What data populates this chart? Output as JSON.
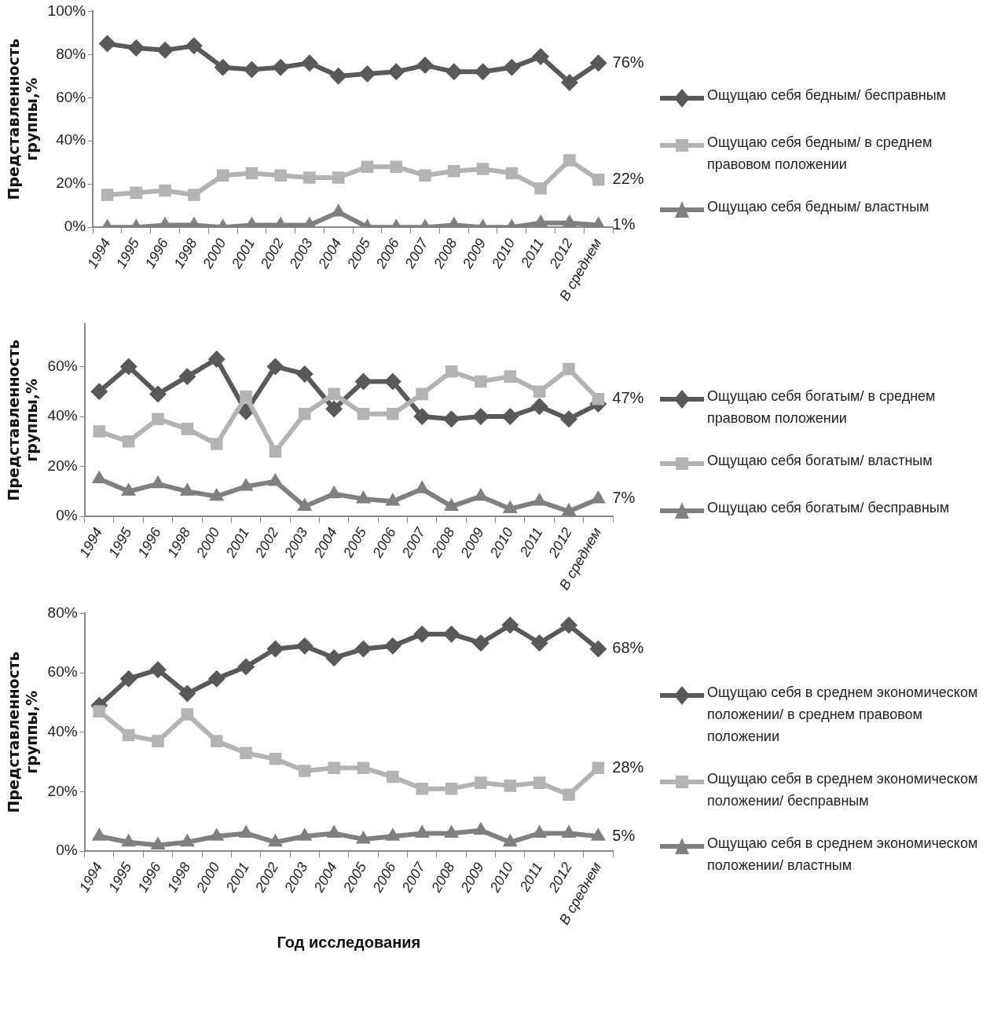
{
  "chart_data": [
    {
      "type": "line",
      "ylabel": "Представленность группы,%",
      "categories": [
        "1994",
        "1995",
        "1996",
        "1998",
        "2000",
        "2001",
        "2002",
        "2003",
        "2004",
        "2005",
        "2006",
        "2007",
        "2008",
        "2009",
        "2010",
        "2011",
        "2012",
        "В среднем"
      ],
      "ylim": [
        0,
        100
      ],
      "yticks": [
        {
          "value": 0,
          "label": "0%"
        },
        {
          "value": 20,
          "label": "20%"
        },
        {
          "value": 40,
          "label": "40%"
        },
        {
          "value": 60,
          "label": "60%"
        },
        {
          "value": 80,
          "label": "80%"
        },
        {
          "value": 100,
          "label": "100%"
        }
      ],
      "grid": false,
      "legend": "right",
      "line_style": "solid",
      "series": [
        {
          "name": "Ощущаю себя бедным/ бесправным",
          "color": "#595959",
          "marker": "diamond",
          "values": [
            85,
            83,
            82,
            84,
            74,
            73,
            74,
            76,
            70,
            71,
            72,
            75,
            72,
            72,
            74,
            79,
            67,
            76
          ],
          "value_labels": [
            null,
            null,
            null,
            null,
            null,
            null,
            null,
            null,
            null,
            null,
            null,
            null,
            null,
            null,
            null,
            null,
            null,
            "76%"
          ]
        },
        {
          "name": "Ощущаю себя бедным/  в среднем правовом положении",
          "color": "#b3b3b3",
          "marker": "square",
          "values": [
            15,
            16,
            17,
            15,
            24,
            25,
            24,
            23,
            23,
            28,
            28,
            24,
            26,
            27,
            25,
            18,
            31,
            22
          ],
          "value_labels": [
            null,
            null,
            null,
            null,
            null,
            null,
            null,
            null,
            null,
            null,
            null,
            null,
            null,
            null,
            null,
            null,
            null,
            "22%"
          ]
        },
        {
          "name": "Ощущаю себя бедным/ властным",
          "color": "#808080",
          "marker": "triangle",
          "values": [
            0,
            0,
            1,
            1,
            0,
            1,
            1,
            1,
            7,
            0,
            0,
            0,
            1,
            0,
            0,
            2,
            2,
            1
          ],
          "value_labels": [
            null,
            null,
            null,
            null,
            null,
            null,
            null,
            null,
            null,
            null,
            null,
            null,
            null,
            null,
            null,
            null,
            null,
            "1%"
          ]
        }
      ]
    },
    {
      "type": "line",
      "ylabel": "Представленность группы,%",
      "categories": [
        "1994",
        "1995",
        "1996",
        "1998",
        "2000",
        "2001",
        "2002",
        "2003",
        "2004",
        "2005",
        "2006",
        "2007",
        "2008",
        "2009",
        "2010",
        "2011",
        "2012",
        "В среднем"
      ],
      "ylim": [
        0,
        77
      ],
      "yticks": [
        {
          "value": 0,
          "label": "0%"
        },
        {
          "value": 20,
          "label": "20%"
        },
        {
          "value": 40,
          "label": "40%"
        },
        {
          "value": 60,
          "label": "60%"
        }
      ],
      "grid": false,
      "legend": "right",
      "line_style": "solid",
      "series": [
        {
          "name": "Ощущаю себя богатым/  в среднем правовом положении",
          "color": "#595959",
          "marker": "diamond",
          "values": [
            50,
            60,
            49,
            56,
            63,
            42,
            60,
            57,
            43,
            54,
            54,
            40,
            39,
            40,
            40,
            44,
            39,
            45
          ]
        },
        {
          "name": "Ощущаю себя богатым/ властным",
          "color": "#b3b3b3",
          "marker": "square",
          "values": [
            34,
            30,
            39,
            35,
            29,
            48,
            26,
            41,
            49,
            41,
            41,
            49,
            58,
            54,
            56,
            50,
            59,
            47
          ],
          "value_labels": [
            null,
            null,
            null,
            null,
            null,
            null,
            null,
            null,
            null,
            null,
            null,
            null,
            null,
            null,
            null,
            null,
            null,
            "47%"
          ]
        },
        {
          "name": "Ощущаю себя богатым/ бесправным",
          "color": "#808080",
          "marker": "triangle",
          "values": [
            15,
            10,
            13,
            10,
            8,
            12,
            14,
            4,
            9,
            7,
            6,
            11,
            4,
            8,
            3,
            6,
            2,
            7
          ],
          "value_labels": [
            null,
            null,
            null,
            null,
            null,
            null,
            null,
            null,
            null,
            null,
            null,
            null,
            null,
            null,
            null,
            null,
            null,
            "7%"
          ]
        }
      ]
    },
    {
      "type": "line",
      "ylabel": "Представленность группы,%",
      "xlabel": "Год исследования",
      "categories": [
        "1994",
        "1995",
        "1996",
        "1998",
        "2000",
        "2001",
        "2002",
        "2003",
        "2004",
        "2005",
        "2006",
        "2007",
        "2008",
        "2009",
        "2010",
        "2011",
        "2012",
        "В среднем"
      ],
      "ylim": [
        0,
        80
      ],
      "yticks": [
        {
          "value": 0,
          "label": "0%"
        },
        {
          "value": 20,
          "label": "20%"
        },
        {
          "value": 40,
          "label": "40%"
        },
        {
          "value": 60,
          "label": "60%"
        },
        {
          "value": 80,
          "label": "80%"
        }
      ],
      "grid": false,
      "legend": "right",
      "line_style": "solid",
      "series": [
        {
          "name": "Ощущаю себя в среднем экономическом положении/  в среднем правовом положении",
          "color": "#595959",
          "marker": "diamond",
          "values": [
            49,
            58,
            61,
            53,
            58,
            62,
            68,
            69,
            65,
            68,
            69,
            73,
            73,
            70,
            76,
            70,
            76,
            68
          ],
          "value_labels": [
            null,
            null,
            null,
            null,
            null,
            null,
            null,
            null,
            null,
            null,
            null,
            null,
            null,
            null,
            null,
            null,
            null,
            "68%"
          ]
        },
        {
          "name": "Ощущаю себя в среднем экономическом положении/ бесправным",
          "color": "#b3b3b3",
          "marker": "square",
          "values": [
            47,
            39,
            37,
            46,
            37,
            33,
            31,
            27,
            28,
            28,
            25,
            21,
            21,
            23,
            22,
            23,
            19,
            28
          ],
          "value_labels": [
            null,
            null,
            null,
            null,
            null,
            null,
            null,
            null,
            null,
            null,
            null,
            null,
            null,
            null,
            null,
            null,
            null,
            "28%"
          ]
        },
        {
          "name": "Ощущаю себя в среднем экономическом положении/ властным",
          "color": "#808080",
          "marker": "triangle",
          "values": [
            5,
            3,
            2,
            3,
            5,
            6,
            3,
            5,
            6,
            4,
            5,
            6,
            6,
            7,
            3,
            6,
            6,
            5
          ],
          "value_labels": [
            null,
            null,
            null,
            null,
            null,
            null,
            null,
            null,
            null,
            null,
            null,
            null,
            null,
            null,
            null,
            null,
            null,
            "5%"
          ]
        }
      ]
    }
  ]
}
